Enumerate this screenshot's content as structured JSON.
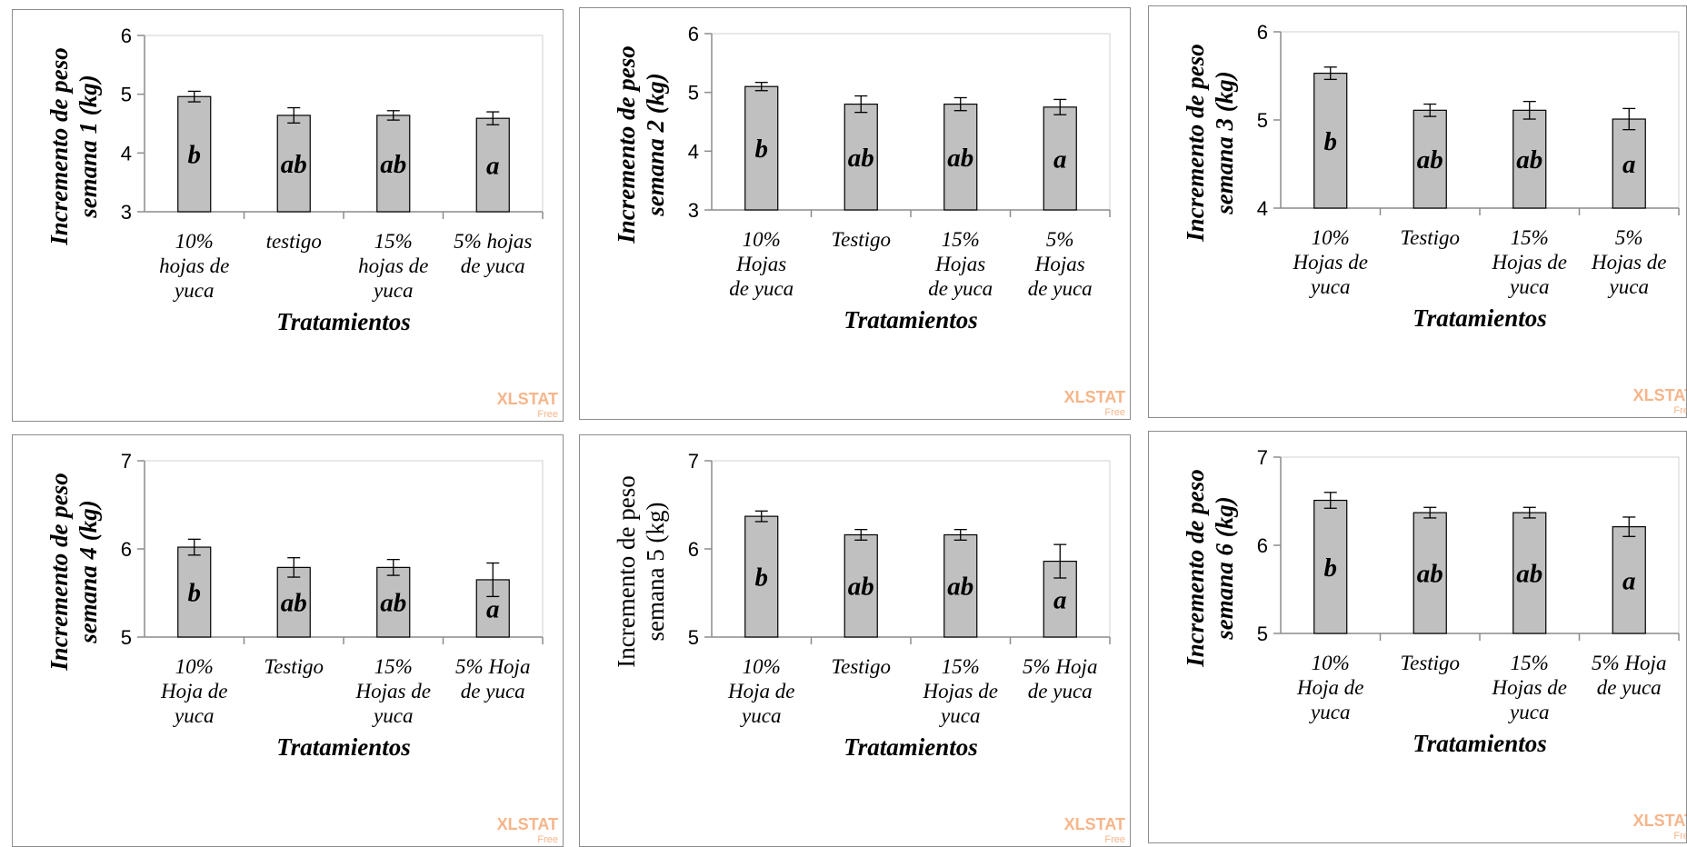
{
  "colors": {
    "bar_fill": "#c0c0c0",
    "bar_stroke": "#000000",
    "axis": "#8c8c8c",
    "watermark": "#f6b58a"
  },
  "watermark": {
    "brand": "XLSTAT",
    "tier": "Free"
  },
  "chart_data": [
    {
      "type": "bar",
      "title": "",
      "xlabel": "Tratamientos",
      "ylabel_lines": [
        "Incremento de peso",
        "semana 1 (kg)"
      ],
      "ylabel_style": "bold-italic",
      "ylim": [
        3,
        6
      ],
      "yticks": [
        3,
        4,
        5,
        6
      ],
      "grid": false,
      "categories": [
        [
          "10%",
          "hojas de",
          "yuca"
        ],
        [
          "testigo"
        ],
        [
          "15%",
          "hojas de",
          "yuca"
        ],
        [
          "5% hojas",
          "de yuca"
        ]
      ],
      "values": [
        4.96,
        4.64,
        4.64,
        4.59
      ],
      "errors": [
        0.09,
        0.13,
        0.08,
        0.11
      ],
      "letters": [
        "b",
        "ab",
        "ab",
        "a"
      ]
    },
    {
      "type": "bar",
      "title": "",
      "xlabel": "Tratamientos",
      "ylabel_lines": [
        "Incremento de peso",
        "semana 2 (kg)"
      ],
      "ylabel_style": "bold-italic",
      "ylim": [
        3,
        6
      ],
      "yticks": [
        3,
        4,
        5,
        6
      ],
      "grid": false,
      "categories": [
        [
          "10%",
          "Hojas",
          "de yuca"
        ],
        [
          "Testigo"
        ],
        [
          "15%",
          "Hojas",
          "de yuca"
        ],
        [
          "5%",
          "Hojas",
          "de yuca"
        ]
      ],
      "values": [
        5.1,
        4.8,
        4.8,
        4.75
      ],
      "errors": [
        0.07,
        0.14,
        0.11,
        0.13
      ],
      "letters": [
        "b",
        "ab",
        "ab",
        "a"
      ]
    },
    {
      "type": "bar",
      "title": "",
      "xlabel": "Tratamientos",
      "ylabel_lines": [
        "Incremento de peso",
        "semana 3 (kg)"
      ],
      "ylabel_style": "bold-italic",
      "ylim": [
        4,
        6
      ],
      "yticks": [
        4,
        5,
        6
      ],
      "grid": false,
      "categories": [
        [
          "10%",
          "Hojas de",
          "yuca"
        ],
        [
          "Testigo"
        ],
        [
          "15%",
          "Hojas de",
          "yuca"
        ],
        [
          "5%",
          "Hojas de",
          "yuca"
        ]
      ],
      "values": [
        5.53,
        5.11,
        5.11,
        5.01
      ],
      "errors": [
        0.07,
        0.07,
        0.1,
        0.12
      ],
      "letters": [
        "b",
        "ab",
        "ab",
        "a"
      ]
    },
    {
      "type": "bar",
      "title": "",
      "xlabel": "Tratamientos",
      "ylabel_lines": [
        "Incremento de peso",
        "semana 4 (kg)"
      ],
      "ylabel_style": "bold-italic",
      "ylim": [
        5,
        7
      ],
      "yticks": [
        5,
        6,
        7
      ],
      "grid": false,
      "categories": [
        [
          "10%",
          "Hoja de",
          "yuca"
        ],
        [
          "Testigo"
        ],
        [
          "15%",
          "Hojas de",
          "yuca"
        ],
        [
          "5% Hoja",
          "de yuca"
        ]
      ],
      "values": [
        6.02,
        5.79,
        5.79,
        5.65
      ],
      "errors": [
        0.09,
        0.11,
        0.09,
        0.19
      ],
      "letters": [
        "b",
        "ab",
        "ab",
        "a"
      ]
    },
    {
      "type": "bar",
      "title": "",
      "xlabel": "Tratamientos",
      "ylabel_lines": [
        "Incremento de peso",
        "semana 5 (kg)"
      ],
      "ylabel_style": "plain",
      "ylim": [
        5,
        7
      ],
      "yticks": [
        5,
        6,
        7
      ],
      "grid": false,
      "categories": [
        [
          "10%",
          "Hoja de",
          "yuca"
        ],
        [
          "Testigo"
        ],
        [
          "15%",
          "Hojas de",
          "yuca"
        ],
        [
          "5% Hoja",
          "de yuca"
        ]
      ],
      "values": [
        6.37,
        6.16,
        6.16,
        5.86
      ],
      "errors": [
        0.06,
        0.06,
        0.06,
        0.19
      ],
      "letters": [
        "b",
        "ab",
        "ab",
        "a"
      ]
    },
    {
      "type": "bar",
      "title": "",
      "xlabel": "Tratamientos",
      "ylabel_lines": [
        "Incremento de peso",
        "semana 6 (kg)"
      ],
      "ylabel_style": "bold-italic",
      "ylim": [
        5,
        7
      ],
      "yticks": [
        5,
        6,
        7
      ],
      "grid": false,
      "categories": [
        [
          "10%",
          "Hoja de",
          "yuca"
        ],
        [
          "Testigo"
        ],
        [
          "15%",
          "Hojas de",
          "yuca"
        ],
        [
          "5% Hoja",
          "de yuca"
        ]
      ],
      "values": [
        6.51,
        6.37,
        6.37,
        6.21
      ],
      "errors": [
        0.09,
        0.06,
        0.06,
        0.11
      ],
      "letters": [
        "b",
        "ab",
        "ab",
        "a"
      ]
    }
  ]
}
